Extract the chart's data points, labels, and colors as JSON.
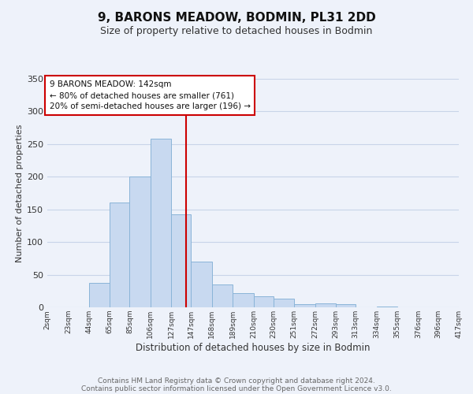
{
  "title": "9, BARONS MEADOW, BODMIN, PL31 2DD",
  "subtitle": "Size of property relative to detached houses in Bodmin",
  "xlabel": "Distribution of detached houses by size in Bodmin",
  "ylabel": "Number of detached properties",
  "bar_color": "#c8d9f0",
  "bar_edge_color": "#8ab4d8",
  "background_color": "#eef2fa",
  "grid_color": "#d8e2f0",
  "vline_value": 142,
  "vline_color": "#cc0000",
  "bin_edges": [
    2,
    23,
    44,
    65,
    85,
    106,
    127,
    147,
    168,
    189,
    210,
    230,
    251,
    272,
    293,
    313,
    334,
    355,
    376,
    396,
    417
  ],
  "bar_heights": [
    0,
    0,
    38,
    160,
    200,
    258,
    142,
    70,
    35,
    22,
    17,
    13,
    5,
    6,
    5,
    0,
    1,
    0,
    0,
    0
  ],
  "tick_labels": [
    "2sqm",
    "23sqm",
    "44sqm",
    "65sqm",
    "85sqm",
    "106sqm",
    "127sqm",
    "147sqm",
    "168sqm",
    "189sqm",
    "210sqm",
    "230sqm",
    "251sqm",
    "272sqm",
    "293sqm",
    "313sqm",
    "334sqm",
    "355sqm",
    "376sqm",
    "396sqm",
    "417sqm"
  ],
  "ylim": [
    0,
    350
  ],
  "annotation_title": "9 BARONS MEADOW: 142sqm",
  "annotation_line1": "← 80% of detached houses are smaller (761)",
  "annotation_line2": "20% of semi-detached houses are larger (196) →",
  "annotation_box_color": "#ffffff",
  "annotation_box_edge": "#cc0000",
  "footer_line1": "Contains HM Land Registry data © Crown copyright and database right 2024.",
  "footer_line2": "Contains public sector information licensed under the Open Government Licence v3.0.",
  "title_fontsize": 11,
  "subtitle_fontsize": 9,
  "ylabel_fontsize": 8,
  "xlabel_fontsize": 8.5,
  "tick_fontsize": 6.5,
  "annotation_fontsize": 7.5,
  "footer_fontsize": 6.5,
  "ytick_fontsize": 8
}
